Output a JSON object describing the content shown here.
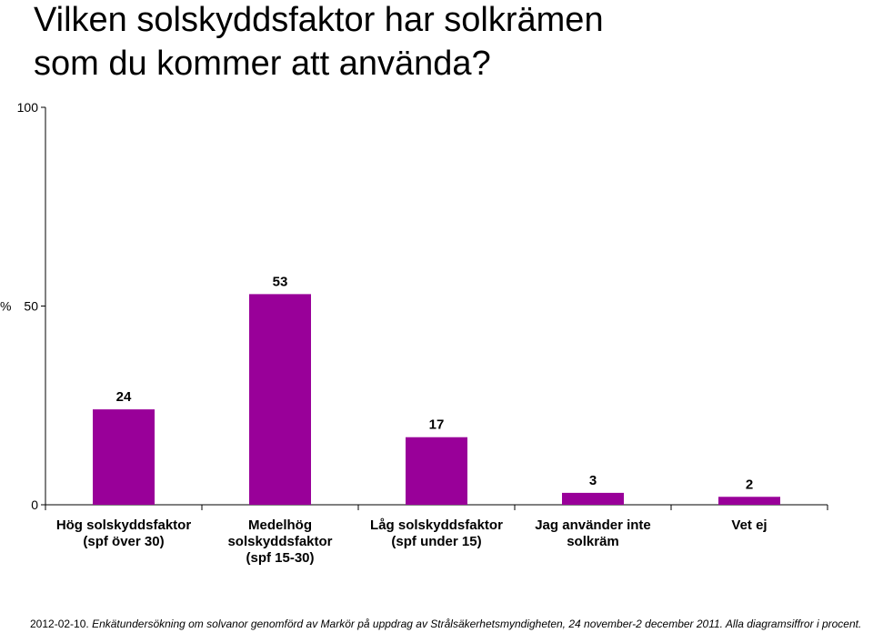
{
  "title_lines": [
    "Vilken solskyddsfaktor har solkrämen",
    "som du kommer att använda?"
  ],
  "footer": {
    "date": "2012-02-10.",
    "text": "Enkätundersökning om solvanor genomförd av Markör på uppdrag av Strålsäkerhetsmyndigheten, 24 november-2 december 2011. Alla diagramsiffror i procent."
  },
  "chart_data": {
    "type": "bar",
    "title": "Vilken solskyddsfaktor har solkrämen som du kommer att använda?",
    "ylabel": "%",
    "ylim": [
      0,
      100
    ],
    "yticks": [
      0,
      50,
      100
    ],
    "grid": false,
    "bar_color": "#990099",
    "categories": [
      [
        "Hög solskyddsfaktor",
        "(spf över 30)"
      ],
      [
        "Medelhög",
        "solskyddsfaktor",
        "(spf 15-30)"
      ],
      [
        "Låg solskyddsfaktor",
        "(spf under 15)"
      ],
      [
        "Jag använder inte",
        "solkräm"
      ],
      [
        "Vet ej"
      ]
    ],
    "values": [
      24,
      53,
      17,
      3,
      2
    ],
    "value_labels": [
      "24",
      "53",
      "17",
      "3",
      "2"
    ]
  }
}
